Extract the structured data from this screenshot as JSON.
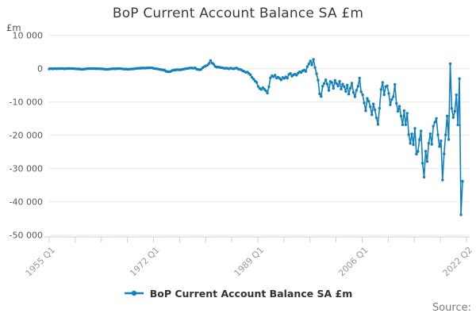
{
  "title": "BoP Current Account Balance SA £m",
  "y_axis_unit": "£m",
  "source_label": "Source:",
  "legend": {
    "label": "BoP Current Account Balance SA £m"
  },
  "colors": {
    "line": "#1380be",
    "grid": "#e9e9e9",
    "axis": "#c4d1e3",
    "x_tick_label": "#95999f",
    "y_tick_label": "#575757"
  },
  "chart_data": {
    "type": "line",
    "title": "BoP Current Account Balance SA £m",
    "ylabel": "£m",
    "frequency": "quarterly",
    "x_start": "1955 Q1",
    "x_end": "2022 Q2",
    "x_tick_labels": [
      "1955 Q1",
      "1972 Q1",
      "1989 Q1",
      "2006 Q1",
      "2022 Q2"
    ],
    "y_ticks": [
      10000,
      0,
      -10000,
      -20000,
      -30000,
      -40000,
      -50000
    ],
    "y_tick_labels": [
      "10 000",
      "0",
      "-10 000",
      "-20 000",
      "-30 000",
      "-40 000",
      "-50 000"
    ],
    "ylim": [
      -50000,
      10000
    ],
    "grid": "horizontal",
    "legend_position": "bottom-center",
    "marker": "dot",
    "series": [
      {
        "name": "BoP Current Account Balance SA £m",
        "values": [
          -60,
          40,
          -30,
          20,
          50,
          -20,
          30,
          60,
          40,
          70,
          -40,
          30,
          80,
          60,
          40,
          70,
          30,
          -20,
          -60,
          -40,
          -120,
          -180,
          -160,
          -90,
          -40,
          20,
          60,
          30,
          50,
          40,
          20,
          -10,
          30,
          -20,
          -40,
          -60,
          -130,
          -200,
          -170,
          -140,
          -50,
          -20,
          10,
          -40,
          20,
          60,
          40,
          10,
          -80,
          -120,
          -90,
          -160,
          -140,
          -110,
          -70,
          -50,
          40,
          110,
          130,
          150,
          170,
          200,
          180,
          210,
          240,
          270,
          250,
          280,
          90,
          40,
          -30,
          -90,
          -220,
          -290,
          -360,
          -430,
          -780,
          -870,
          -910,
          -830,
          -560,
          -430,
          -390,
          -310,
          -290,
          -360,
          -270,
          -200,
          -70,
          10,
          90,
          150,
          240,
          190,
          160,
          230,
          -130,
          -240,
          -320,
          -160,
          370,
          630,
          850,
          1070,
          1550,
          2440,
          1690,
          1380,
          710,
          460,
          530,
          390,
          320,
          250,
          100,
          170,
          120,
          -50,
          190,
          70,
          -30,
          130,
          220,
          -100,
          -170,
          -340,
          -650,
          -830,
          -1120,
          -1020,
          -1450,
          -1840,
          -2610,
          -3120,
          -3710,
          -4120,
          -5320,
          -5910,
          -6230,
          -5720,
          -6140,
          -6610,
          -7340,
          -5430,
          -2740,
          -2120,
          -2430,
          -1930,
          -2810,
          -2520,
          -2930,
          -3340,
          -2640,
          -2910,
          -2430,
          -2840,
          -1720,
          -1430,
          -2240,
          -1830,
          -1630,
          -1940,
          -1320,
          -930,
          -1140,
          -620,
          -430,
          -810,
          640,
          1420,
          2330,
          1130,
          2780,
          340,
          -1520,
          -3430,
          -7550,
          -8330,
          -5240,
          -4430,
          -3340,
          -4620,
          -6540,
          -3840,
          -4160,
          -5890,
          -3520,
          -4450,
          -5230,
          -3790,
          -6120,
          -4640,
          -5410,
          -6830,
          -4910,
          -7620,
          -5840,
          -4330,
          -7130,
          -8420,
          -6480,
          -5270,
          -2840,
          -6910,
          -7830,
          -10240,
          -12630,
          -8930,
          -9780,
          -11420,
          -13840,
          -10610,
          -12390,
          -14780,
          -16730,
          -11890,
          -6240,
          -4130,
          -7840,
          -5410,
          -5140,
          -7430,
          -10820,
          -9240,
          -8420,
          -4720,
          -10380,
          -12790,
          -11290,
          -14230,
          -16870,
          -12610,
          -16840,
          -13390,
          -19790,
          -22430,
          -19570,
          -22840,
          -17920,
          -25660,
          -24880,
          -21340,
          -18680,
          -28390,
          -32580,
          -24790,
          -27860,
          -22390,
          -19560,
          -22730,
          -17280,
          -16060,
          -14930,
          -19840,
          -23370,
          -21680,
          -33440,
          -25590,
          -19850,
          -14240,
          -21270,
          1480,
          -11930,
          -14640,
          -12780,
          -7850,
          -16880,
          -3020,
          -43870,
          -33820
        ]
      }
    ]
  }
}
